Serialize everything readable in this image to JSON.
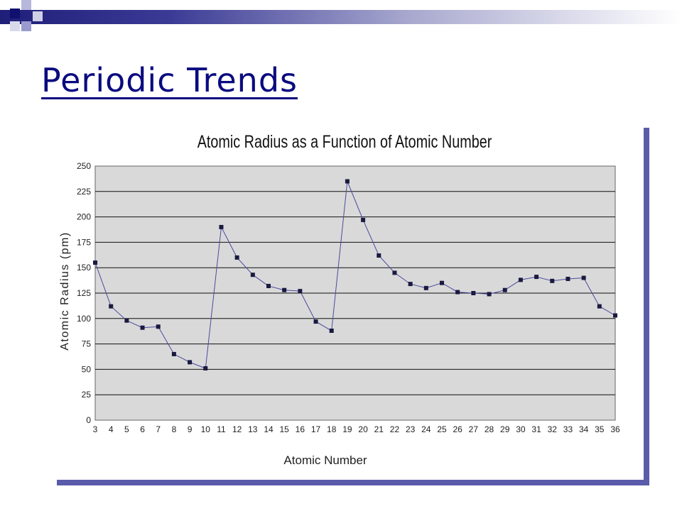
{
  "slide": {
    "title": "Periodic Trends"
  },
  "colors": {
    "accent": "#0a0a80",
    "line": "#4a4aa0",
    "marker": "#1a1a40",
    "plot_bg": "#d9d9d9"
  },
  "chart_data": {
    "type": "line",
    "title": "Atomic Radius as a Function of Atomic Number",
    "xlabel": "Atomic Number",
    "ylabel": "Atomic Radius (pm)",
    "x": [
      3,
      4,
      5,
      6,
      7,
      8,
      9,
      10,
      11,
      12,
      13,
      14,
      15,
      16,
      17,
      18,
      19,
      20,
      21,
      22,
      23,
      24,
      25,
      26,
      27,
      28,
      29,
      30,
      31,
      32,
      33,
      34,
      35,
      36
    ],
    "series": [
      {
        "values": [
          155,
          112,
          98,
          91,
          92,
          65,
          57,
          51,
          190,
          160,
          143,
          132,
          128,
          127,
          97,
          88,
          235,
          197,
          162,
          145,
          134,
          130,
          135,
          126,
          125,
          124,
          128,
          138,
          141,
          137,
          139,
          140,
          112,
          103
        ]
      }
    ],
    "ylim": [
      0,
      250
    ],
    "yticks": [
      0,
      25,
      50,
      75,
      100,
      125,
      150,
      175,
      200,
      225,
      250
    ],
    "grid": true,
    "legend": "none"
  }
}
